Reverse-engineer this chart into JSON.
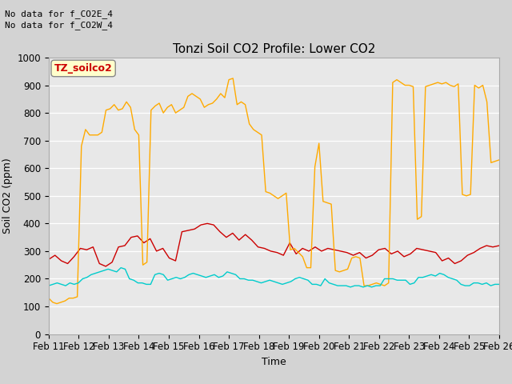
{
  "title": "Tonzi Soil CO2 Profile: Lower CO2",
  "xlabel": "Time",
  "ylabel": "Soil CO2 (ppm)",
  "ylim": [
    0,
    1000
  ],
  "annotations": [
    "No data for f_CO2E_4",
    "No data for f_CO2W_4"
  ],
  "legend_label_box": "TZ_soilco2",
  "xtick_labels": [
    "Feb 11",
    "Feb 12",
    "Feb 13",
    "Feb 14",
    "Feb 15",
    "Feb 16",
    "Feb 17",
    "Feb 18",
    "Feb 19",
    "Feb 20",
    "Feb 21",
    "Feb 22",
    "Feb 23",
    "Feb 24",
    "Feb 25",
    "Feb 26"
  ],
  "open_8cm": [
    270,
    285,
    265,
    255,
    280,
    310,
    305,
    315,
    255,
    245,
    260,
    315,
    320,
    350,
    355,
    330,
    345,
    300,
    310,
    275,
    265,
    370,
    375,
    380,
    395,
    400,
    395,
    370,
    350,
    365,
    340,
    360,
    340,
    315,
    310,
    300,
    295,
    285,
    330,
    290,
    310,
    300,
    315,
    300,
    310,
    305,
    300,
    295,
    285,
    295,
    275,
    285,
    305,
    310,
    290,
    300,
    280,
    290,
    310,
    305,
    300,
    295,
    265,
    275,
    255,
    265,
    285,
    295,
    310,
    320,
    315,
    320
  ],
  "tree_8cm": [
    130,
    115,
    110,
    115,
    120,
    130,
    130,
    135,
    680,
    740,
    720,
    720,
    720,
    730,
    810,
    815,
    830,
    810,
    815,
    840,
    820,
    740,
    720,
    250,
    260,
    810,
    825,
    835,
    800,
    820,
    830,
    800,
    810,
    820,
    860,
    870,
    860,
    850,
    820,
    830,
    835,
    850,
    870,
    855,
    920,
    925,
    830,
    840,
    830,
    760,
    740,
    730,
    720,
    515,
    510,
    500,
    490,
    500,
    510,
    305,
    310,
    295,
    280,
    240,
    240,
    605,
    690,
    480,
    475,
    470,
    230,
    225,
    230,
    235,
    275,
    280,
    275,
    175,
    175,
    180,
    185,
    180,
    175,
    185,
    910,
    920,
    910,
    900,
    900,
    895,
    415,
    425,
    895,
    900,
    905,
    910,
    905,
    910,
    900,
    895,
    905,
    505,
    500,
    505,
    900,
    890,
    900,
    840,
    620,
    625,
    630
  ],
  "tree2_8cm": [
    175,
    180,
    185,
    180,
    175,
    185,
    180,
    185,
    200,
    205,
    215,
    220,
    225,
    230,
    235,
    230,
    225,
    240,
    235,
    200,
    195,
    185,
    185,
    180,
    180,
    215,
    220,
    215,
    195,
    200,
    205,
    200,
    205,
    215,
    220,
    215,
    210,
    205,
    210,
    215,
    205,
    210,
    225,
    220,
    215,
    200,
    200,
    195,
    195,
    190,
    185,
    190,
    195,
    190,
    185,
    180,
    185,
    190,
    200,
    205,
    200,
    195,
    180,
    180,
    175,
    200,
    185,
    180,
    175,
    175,
    175,
    170,
    175,
    175,
    170,
    175,
    170,
    175,
    175,
    200,
    200,
    200,
    195,
    195,
    195,
    180,
    185,
    205,
    205,
    210,
    215,
    210,
    220,
    215,
    205,
    200,
    195,
    180,
    175,
    175,
    185,
    185,
    180,
    185,
    175,
    180,
    180
  ]
}
